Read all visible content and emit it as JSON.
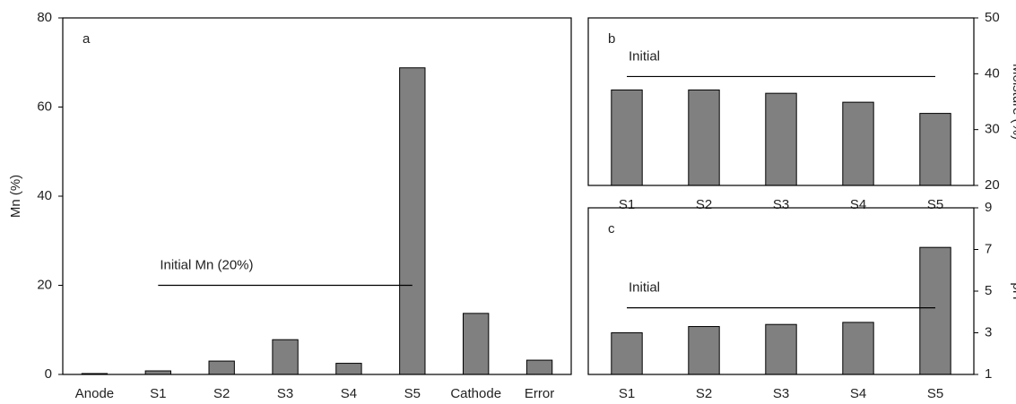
{
  "chart_data": [
    {
      "type": "bar",
      "panel_label": "a",
      "ylabel": "Mn (%)",
      "axis_side": "left",
      "categories": [
        "Anode",
        "S1",
        "S2",
        "S3",
        "S4",
        "S5",
        "Cathode",
        "Error"
      ],
      "values": [
        0.2,
        0.8,
        3.0,
        7.8,
        2.5,
        68.8,
        13.7,
        3.2
      ],
      "color": "#808080",
      "ylim": [
        0,
        80
      ],
      "yticks": [
        0,
        20,
        40,
        60,
        80
      ],
      "reference": {
        "label": "Initial Mn (20%)",
        "value": 20
      }
    },
    {
      "type": "bar",
      "panel_label": "b",
      "ylabel": "Moisture (%)",
      "axis_side": "right",
      "categories": [
        "S1",
        "S2",
        "S3",
        "S4",
        "S5"
      ],
      "values": [
        37.1,
        37.1,
        36.5,
        34.9,
        32.9
      ],
      "color": "#808080",
      "ylim": [
        20,
        50
      ],
      "yticks": [
        20,
        30,
        40,
        50
      ],
      "reference": {
        "label": "Initial",
        "value": 39.5
      }
    },
    {
      "type": "bar",
      "panel_label": "c",
      "ylabel": "pH",
      "axis_side": "right",
      "categories": [
        "S1",
        "S2",
        "S3",
        "S4",
        "S5"
      ],
      "values": [
        3.0,
        3.3,
        3.4,
        3.5,
        7.1
      ],
      "color": "#808080",
      "ylim": [
        1,
        9
      ],
      "yticks": [
        1,
        3,
        5,
        7,
        9
      ],
      "reference": {
        "label": "Initial",
        "value": 4.2
      }
    }
  ]
}
